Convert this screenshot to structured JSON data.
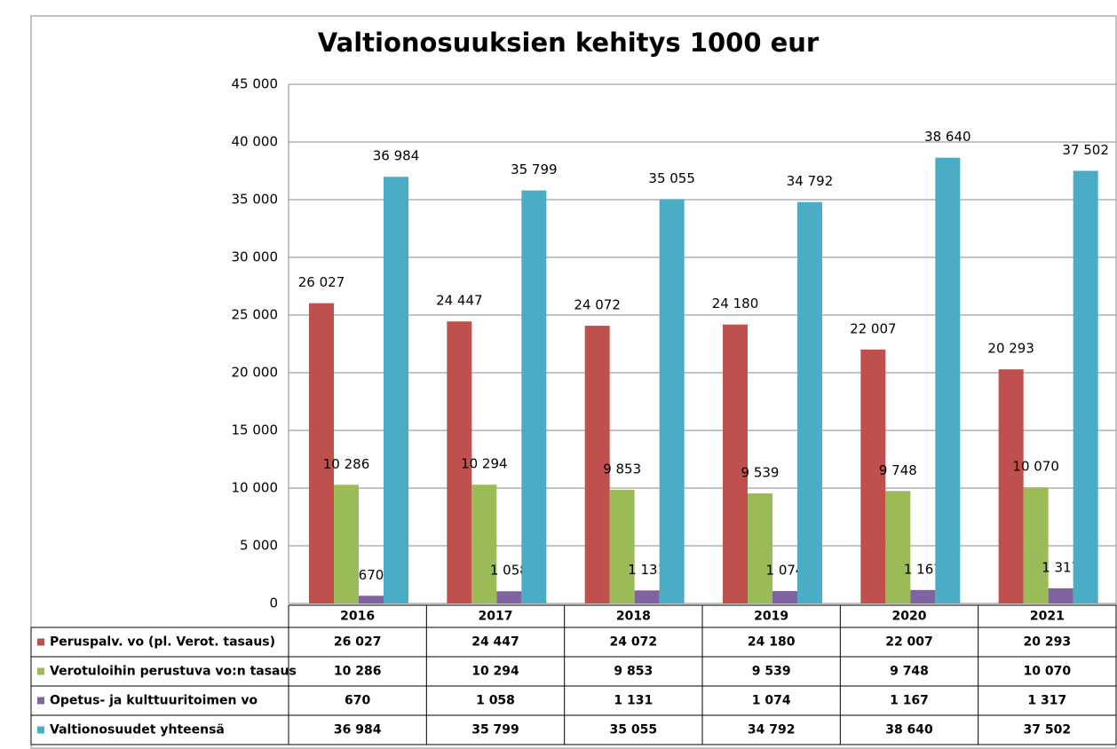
{
  "chart_data": {
    "type": "bar",
    "title": "Valtionosuuksien kehitys 1000 eur",
    "categories": [
      "2016",
      "2017",
      "2018",
      "2019",
      "2020",
      "2021"
    ],
    "series": [
      {
        "name": "Peruspalv. vo (pl.  Verot. tasaus)",
        "color": "#c0504d",
        "values": [
          26027,
          24447,
          24072,
          24180,
          22007,
          20293
        ],
        "value_labels": [
          "26 027",
          "24 447",
          "24 072",
          "24 180",
          "22 007",
          "20 293"
        ]
      },
      {
        "name": "Verotuloihin perustuva vo:n tasaus",
        "color": "#9bbb59",
        "values": [
          10286,
          10294,
          9853,
          9539,
          9748,
          10070
        ],
        "value_labels": [
          "10 286",
          "10 294",
          "9 853",
          "9 539",
          "9 748",
          "10 070"
        ]
      },
      {
        "name": "Opetus- ja kulttuuritoimen vo",
        "color": "#8064a2",
        "values": [
          670,
          1058,
          1131,
          1074,
          1167,
          1317
        ],
        "value_labels": [
          "670",
          "1 058",
          "1 131",
          "1 074",
          "1 167",
          "1 317"
        ]
      },
      {
        "name": "Valtionosuudet yhteensä",
        "color": "#4bacc6",
        "values": [
          36984,
          35799,
          35055,
          34792,
          38640,
          37502
        ],
        "value_labels": [
          "36 984",
          "35 799",
          "35 055",
          "34 792",
          "38 640",
          "37 502"
        ]
      }
    ],
    "ylim": [
      0,
      45000
    ],
    "yticks": [
      0,
      {
        "value": 5000,
        "label": "5 000"
      },
      {
        "value": 10000,
        "label": "10 000"
      },
      {
        "value": 15000,
        "label": "15 000"
      },
      {
        "value": 20000,
        "label": "20 000"
      },
      {
        "value": 25000,
        "label": "25 000"
      },
      {
        "value": 30000,
        "label": "30 000"
      },
      {
        "value": 35000,
        "label": "35 000"
      },
      {
        "value": 40000,
        "label": "40 000"
      },
      {
        "value": 45000,
        "label": "45 000"
      }
    ],
    "grid": true
  }
}
